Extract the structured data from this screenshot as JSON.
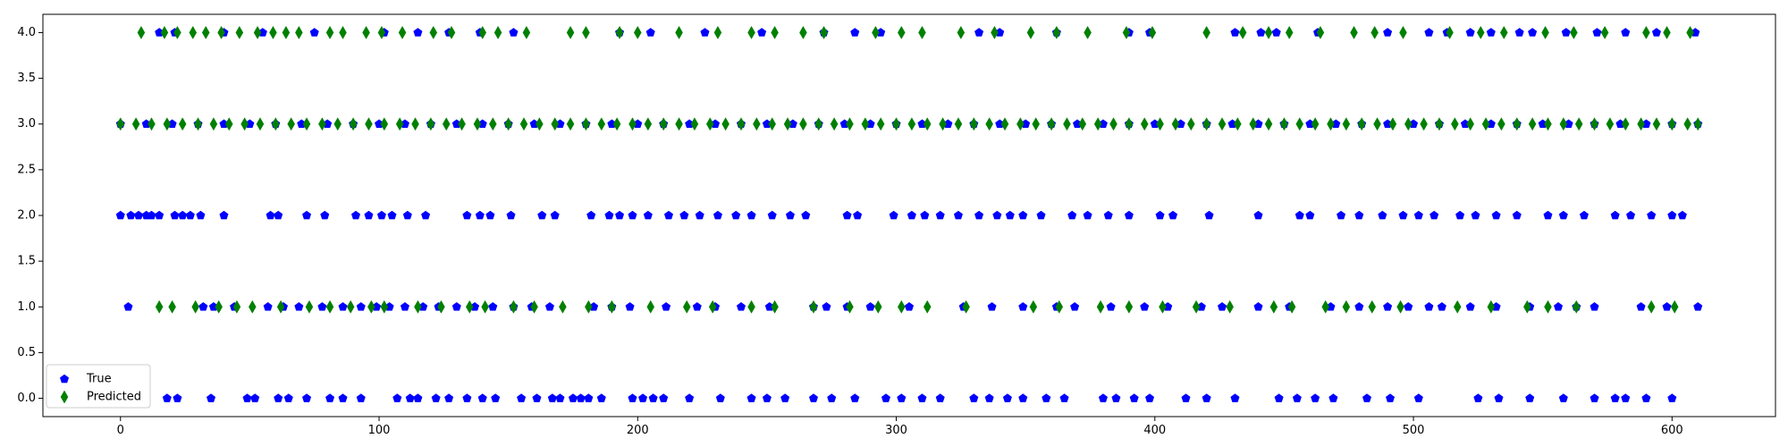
{
  "chart_data": {
    "type": "scatter",
    "title": "",
    "xlabel": "",
    "ylabel": "",
    "xlim": [
      -30,
      640
    ],
    "ylim": [
      -0.2,
      4.2
    ],
    "grid": false,
    "legend_placement": "lower-left",
    "x_ticks": [
      0,
      100,
      200,
      300,
      400,
      500,
      600
    ],
    "x_tick_labels": [
      "0",
      "100",
      "200",
      "300",
      "400",
      "500",
      "600"
    ],
    "y_ticks": [
      0.0,
      0.5,
      1.0,
      1.5,
      2.0,
      2.5,
      3.0,
      3.5,
      4.0
    ],
    "y_tick_labels": [
      "0.0",
      "0.5",
      "1.0",
      "1.5",
      "2.0",
      "2.5",
      "3.0",
      "3.5",
      "4.0"
    ],
    "series": [
      {
        "name": "True",
        "color": "#0000ff",
        "marker": "pentagon",
        "points": [
          {
            "y": 4.0,
            "x": [
              15,
              21,
              40,
              55,
              75,
              102,
              115,
              127,
              139,
              152,
              193,
              205,
              226,
              248,
              272,
              284,
              294,
              332,
              340,
              362,
              390,
              398,
              431,
              441,
              447,
              463,
              490,
              506,
              513,
              522,
              530,
              541,
              546,
              559,
              571,
              582,
              594,
              609
            ]
          },
          {
            "y": 3.0,
            "x": [
              0,
              10,
              20,
              30,
              40,
              50,
              60,
              70,
              80,
              90,
              100,
              110,
              120,
              130,
              140,
              150,
              160,
              170,
              180,
              190,
              200,
              210,
              220,
              230,
              240,
              250,
              260,
              270,
              280,
              290,
              300,
              310,
              320,
              330,
              340,
              350,
              360,
              370,
              380,
              390,
              400,
              410,
              420,
              430,
              440,
              450,
              460,
              470,
              480,
              490,
              500,
              510,
              520,
              530,
              540,
              550,
              560,
              570,
              580,
              590,
              600,
              610
            ]
          },
          {
            "y": 2.0,
            "x": [
              0,
              4,
              7,
              10,
              12,
              15,
              21,
              24,
              27,
              31,
              40,
              58,
              61,
              72,
              79,
              91,
              96,
              101,
              105,
              111,
              118,
              134,
              139,
              143,
              151,
              163,
              168,
              182,
              189,
              193,
              198,
              204,
              212,
              218,
              224,
              231,
              238,
              244,
              252,
              259,
              265,
              281,
              285,
              299,
              306,
              311,
              317,
              324,
              332,
              339,
              344,
              349,
              356,
              368,
              374,
              382,
              390,
              402,
              407,
              421,
              440,
              456,
              460,
              472,
              479,
              488,
              496,
              502,
              508,
              518,
              524,
              532,
              540,
              552,
              558,
              566,
              578,
              584,
              592,
              600,
              604
            ]
          },
          {
            "y": 1.0,
            "x": [
              3,
              32,
              36,
              44,
              57,
              63,
              69,
              78,
              86,
              93,
              99,
              104,
              110,
              117,
              123,
              130,
              137,
              144,
              152,
              159,
              166,
              183,
              190,
              197,
              211,
              223,
              230,
              240,
              251,
              268,
              273,
              281,
              290,
              305,
              326,
              337,
              349,
              362,
              369,
              383,
              396,
              405,
              418,
              426,
              440,
              452,
              468,
              479,
              490,
              498,
              506,
              511,
              522,
              532,
              545,
              556,
              563,
              570,
              588,
              598,
              610
            ]
          },
          {
            "y": 0.0,
            "x": [
              18,
              22,
              35,
              49,
              52,
              61,
              65,
              72,
              81,
              86,
              93,
              107,
              112,
              115,
              122,
              127,
              134,
              140,
              145,
              155,
              161,
              167,
              170,
              175,
              178,
              181,
              186,
              198,
              202,
              206,
              210,
              220,
              232,
              244,
              250,
              257,
              268,
              275,
              284,
              296,
              302,
              310,
              317,
              330,
              336,
              343,
              349,
              358,
              365,
              380,
              385,
              392,
              398,
              412,
              420,
              431,
              448,
              455,
              462,
              469,
              482,
              491,
              502,
              525,
              533,
              545,
              558,
              570,
              578,
              582,
              590,
              600
            ]
          }
        ]
      },
      {
        "name": "Predicted",
        "color": "#008000",
        "marker": "thin_diamond",
        "points": [
          {
            "y": 4.0,
            "x": [
              8,
              17,
              22,
              28,
              33,
              39,
              46,
              53,
              59,
              64,
              69,
              81,
              86,
              95,
              101,
              109,
              121,
              128,
              140,
              146,
              157,
              174,
              180,
              193,
              200,
              216,
              231,
              244,
              253,
              264,
              272,
              292,
              302,
              310,
              325,
              338,
              352,
              362,
              374,
              389,
              399,
              420,
              434,
              444,
              452,
              464,
              477,
              485,
              496,
              514,
              526,
              535,
              551,
              562,
              574,
              590,
              598,
              607
            ]
          },
          {
            "y": 3.0,
            "x": [
              0,
              6,
              12,
              18,
              24,
              30,
              36,
              42,
              48,
              54,
              60,
              66,
              72,
              78,
              84,
              90,
              96,
              102,
              108,
              114,
              120,
              126,
              132,
              138,
              144,
              150,
              156,
              162,
              168,
              174,
              180,
              186,
              192,
              198,
              204,
              210,
              216,
              222,
              228,
              234,
              240,
              246,
              252,
              258,
              264,
              270,
              276,
              282,
              288,
              294,
              300,
              306,
              312,
              318,
              324,
              330,
              336,
              342,
              348,
              354,
              360,
              366,
              372,
              378,
              384,
              390,
              396,
              402,
              408,
              414,
              420,
              426,
              432,
              438,
              444,
              450,
              456,
              462,
              468,
              474,
              480,
              486,
              492,
              498,
              504,
              510,
              516,
              522,
              528,
              534,
              540,
              546,
              552,
              558,
              564,
              570,
              576,
              582,
              588,
              594,
              600,
              606,
              610
            ]
          },
          {
            "y": 1.0,
            "x": [
              15,
              20,
              29,
              38,
              45,
              51,
              62,
              73,
              81,
              89,
              97,
              102,
              115,
              124,
              135,
              141,
              152,
              160,
              171,
              181,
              190,
              205,
              219,
              229,
              244,
              253,
              268,
              282,
              293,
              302,
              312,
              327,
              353,
              363,
              379,
              390,
              403,
              416,
              429,
              446,
              453,
              466,
              474,
              484,
              495,
              517,
              530,
              544,
              552,
              563,
              592,
              601
            ]
          },
          {
            "y": 0.0,
            "x": []
          }
        ]
      }
    ],
    "legend": [
      "True",
      "Predicted"
    ]
  }
}
